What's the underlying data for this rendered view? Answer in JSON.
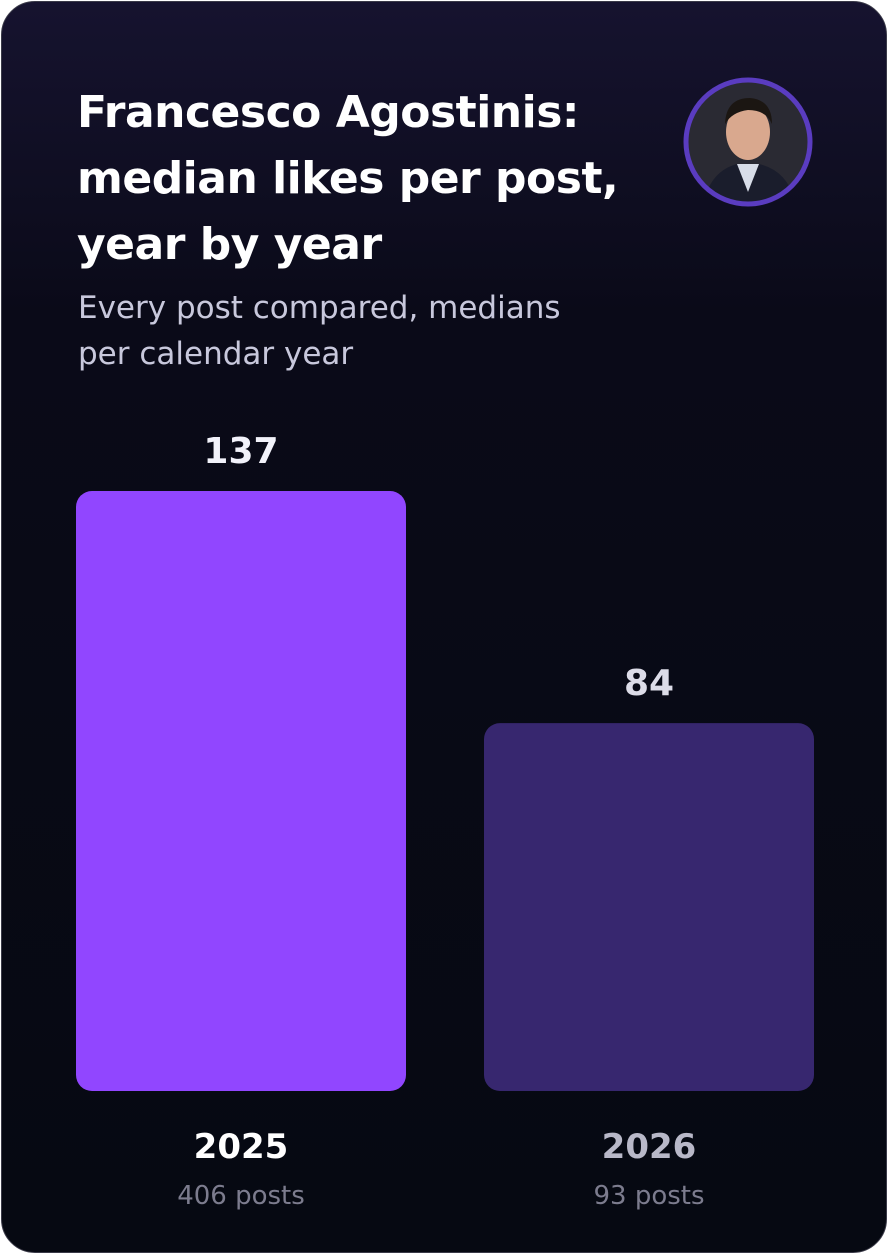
{
  "chart_data": {
    "type": "bar",
    "title": "Francesco Agostinis: median likes per post, year by year",
    "subtitle": "Every post compared, medians per calendar year",
    "categories": [
      "2025",
      "2026"
    ],
    "category_notes": [
      "406 posts",
      "93 posts"
    ],
    "values": [
      137,
      84
    ],
    "colors": [
      "#9146ff",
      "#37276f"
    ]
  }
}
